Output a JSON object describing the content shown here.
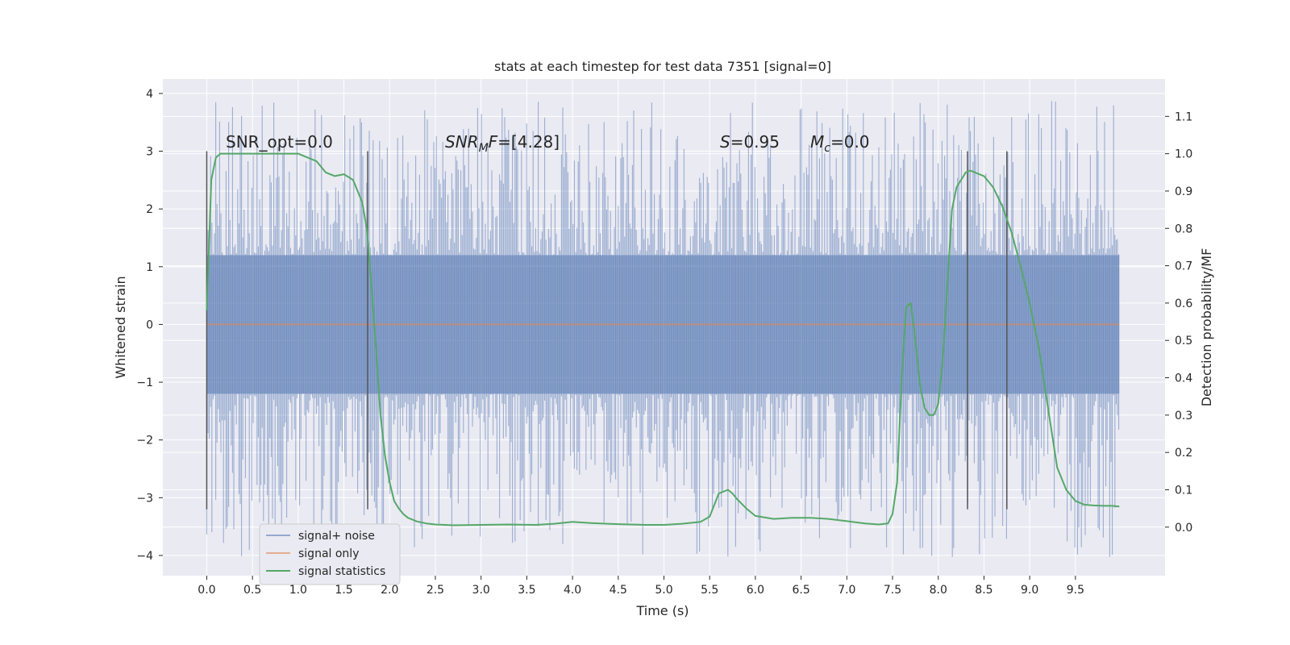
{
  "chart_data": {
    "type": "line",
    "title": "stats at each timestep for test data 7351 [signal=0]",
    "xlabel": "Time (s)",
    "ylabel": "Whitened strain",
    "y2label": "Detection probability/MF",
    "xlim": [
      -0.48,
      10.48
    ],
    "ylim": [
      -4.35,
      4.25
    ],
    "y2lim": [
      -0.13,
      1.2
    ],
    "xticks": [
      "0.0",
      "0.5",
      "1.0",
      "1.5",
      "2.0",
      "2.5",
      "3.0",
      "3.5",
      "4.0",
      "4.5",
      "5.0",
      "5.5",
      "6.0",
      "6.5",
      "7.0",
      "7.5",
      "8.0",
      "8.5",
      "9.0",
      "9.5"
    ],
    "yticks": [
      "4",
      "3",
      "2",
      "1",
      "0",
      "−1",
      "−2",
      "−3",
      "−4"
    ],
    "y2ticks": [
      "1.1",
      "1.0",
      "0.9",
      "0.8",
      "0.7",
      "0.6",
      "0.5",
      "0.4",
      "0.3",
      "0.2",
      "0.1",
      "0.0"
    ],
    "grid": true,
    "legend_position": "lower-left",
    "colors": {
      "background": "#eaeaf2",
      "grid": "#ffffff",
      "noise": "#4c72b0",
      "signal_only": "#dd8452",
      "statistics": "#55a868",
      "vline": "#555555"
    },
    "annotations": {
      "snr_opt": "SNR_opt=0.0",
      "snr_mf": "=[4.28]",
      "s_val": "=0.95",
      "mc_val": "=0.0"
    },
    "series": [
      {
        "name": "signal+ noise",
        "axis": "left",
        "kind": "noise",
        "x_range": [
          0.0,
          9.98
        ],
        "envelope_lo": -1.2,
        "envelope_hi": 1.2,
        "peak_max": 3.87,
        "peak_min": -4.05
      },
      {
        "name": "signal only",
        "axis": "left",
        "x": [
          0.0,
          9.98
        ],
        "y": [
          0.0,
          0.0
        ]
      },
      {
        "name": "signal statistics",
        "axis": "right",
        "x": [
          0.0,
          0.05,
          0.1,
          0.15,
          0.2,
          0.3,
          0.5,
          0.7,
          0.9,
          1.0,
          1.1,
          1.2,
          1.3,
          1.4,
          1.5,
          1.6,
          1.7,
          1.75,
          1.8,
          1.85,
          1.9,
          1.95,
          2.0,
          2.05,
          2.1,
          2.15,
          2.2,
          2.3,
          2.4,
          2.5,
          2.7,
          3.0,
          3.3,
          3.6,
          3.8,
          4.0,
          4.2,
          4.5,
          4.8,
          5.0,
          5.2,
          5.4,
          5.5,
          5.6,
          5.7,
          5.75,
          5.8,
          5.9,
          6.0,
          6.2,
          6.4,
          6.6,
          6.8,
          7.0,
          7.2,
          7.35,
          7.45,
          7.5,
          7.55,
          7.6,
          7.65,
          7.7,
          7.75,
          7.8,
          7.85,
          7.9,
          7.95,
          8.0,
          8.05,
          8.1,
          8.15,
          8.2,
          8.25,
          8.3,
          8.35,
          8.4,
          8.5,
          8.6,
          8.7,
          8.8,
          8.9,
          9.0,
          9.1,
          9.2,
          9.3,
          9.4,
          9.5,
          9.6,
          9.7,
          9.8,
          9.9,
          9.98
        ],
        "y": [
          0.58,
          0.93,
          0.99,
          1.0,
          1.0,
          1.0,
          1.0,
          1.0,
          1.0,
          1.0,
          0.99,
          0.98,
          0.95,
          0.94,
          0.945,
          0.93,
          0.87,
          0.8,
          0.65,
          0.48,
          0.3,
          0.19,
          0.12,
          0.07,
          0.05,
          0.035,
          0.025,
          0.015,
          0.01,
          0.007,
          0.005,
          0.006,
          0.007,
          0.006,
          0.009,
          0.014,
          0.011,
          0.008,
          0.006,
          0.006,
          0.009,
          0.014,
          0.028,
          0.09,
          0.1,
          0.09,
          0.075,
          0.05,
          0.03,
          0.022,
          0.025,
          0.025,
          0.022,
          0.016,
          0.01,
          0.007,
          0.01,
          0.035,
          0.12,
          0.4,
          0.59,
          0.6,
          0.5,
          0.38,
          0.32,
          0.3,
          0.3,
          0.33,
          0.45,
          0.65,
          0.85,
          0.91,
          0.93,
          0.95,
          0.955,
          0.95,
          0.94,
          0.91,
          0.86,
          0.79,
          0.7,
          0.6,
          0.48,
          0.32,
          0.16,
          0.1,
          0.07,
          0.06,
          0.058,
          0.057,
          0.057,
          0.055
        ]
      }
    ],
    "vlines": {
      "x": [
        0.0,
        1.76,
        8.32,
        8.75
      ],
      "ylim": [
        -3.2,
        3.0
      ]
    }
  }
}
